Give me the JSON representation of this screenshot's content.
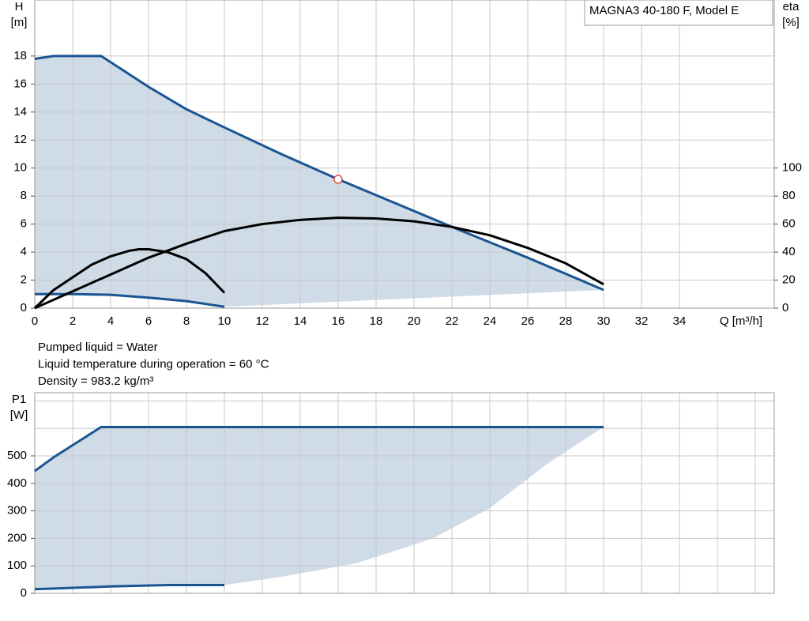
{
  "chart_data": [
    {
      "type": "pump-curve",
      "legend_text": "MAGNA3 40-180 F, Model E",
      "ylabel": [
        "H",
        "[m]"
      ],
      "y2label": [
        "eta",
        "[%]"
      ],
      "xlabel": "Q [m³/h]",
      "xlim": [
        0,
        39
      ],
      "xticks": [
        0,
        2,
        4,
        6,
        8,
        10,
        12,
        14,
        16,
        18,
        20,
        22,
        24,
        26,
        28,
        30,
        32,
        34
      ],
      "ylim": [
        0,
        22
      ],
      "yticks": [
        0,
        2,
        4,
        6,
        8,
        10,
        12,
        14,
        16,
        18
      ],
      "y2lim": [
        0,
        220
      ],
      "y2ticks": [
        0,
        20,
        40,
        60,
        80,
        100
      ],
      "grid": true,
      "fill": "#cfdbe6",
      "show_xtick_labels": true,
      "series": [
        {
          "color": "#1a5592",
          "x": [
            0,
            1,
            3.5,
            6,
            8,
            10,
            13,
            16,
            19,
            22,
            26,
            30
          ],
          "values": [
            17.8,
            18,
            18,
            15.8,
            14.2,
            12.9,
            11,
            9.2,
            7.5,
            5.8,
            3.6,
            1.3
          ]
        },
        {
          "color": "#1a5592",
          "x": [
            10,
            8,
            6,
            4,
            2,
            0
          ],
          "values": [
            0.1,
            0.5,
            0.75,
            0.95,
            1,
            1
          ]
        },
        {
          "color": "#000000",
          "axis": "y2",
          "x": [
            0,
            2,
            4,
            6,
            8,
            10,
            12,
            14,
            16,
            18,
            20,
            22,
            24,
            26,
            28,
            30
          ],
          "values": [
            0,
            12,
            24,
            36,
            46,
            55,
            60,
            63,
            64.5,
            64,
            62,
            58,
            52,
            43,
            32,
            17
          ]
        },
        {
          "color": "#000000",
          "axis": "y2",
          "x": [
            0,
            1,
            2,
            3,
            4,
            5,
            5.5,
            6,
            7,
            8,
            9,
            10
          ],
          "values": [
            0,
            13,
            22,
            31,
            37,
            41,
            42,
            42,
            40,
            35,
            25,
            11
          ]
        }
      ],
      "operating_point": {
        "x": 16,
        "y": 9.2
      },
      "annotations": [
        "Pumped liquid = Water",
        "Liquid temperature during operation = 60 °C",
        "Density = 983.2 kg/m³"
      ]
    },
    {
      "type": "pump-curve",
      "ylabel": [
        "P1",
        "[W]"
      ],
      "xlim": [
        0,
        39
      ],
      "xticks": [
        0,
        2,
        4,
        6,
        8,
        10,
        12,
        14,
        16,
        18,
        20,
        22,
        24,
        26,
        28,
        30,
        32,
        34,
        36,
        38
      ],
      "ylim": [
        0,
        730
      ],
      "yticks": [
        0,
        100,
        200,
        300,
        400,
        500
      ],
      "grid_y": [
        0,
        100,
        200,
        300,
        400,
        500,
        600,
        700
      ],
      "grid": true,
      "fill": "#cfdbe6",
      "show_xtick_labels": false,
      "series": [
        {
          "color": "#1a5592",
          "x": [
            0,
            1,
            3.5,
            30
          ],
          "values": [
            445,
            495,
            605,
            605
          ]
        },
        {
          "x": [
            30,
            27,
            24,
            21,
            17,
            13,
            10
          ],
          "values": [
            605,
            470,
            310,
            200,
            110,
            60,
            30
          ]
        },
        {
          "color": "#1a5592",
          "x": [
            10,
            7,
            4,
            0
          ],
          "values": [
            30,
            30,
            25,
            15
          ]
        }
      ]
    }
  ]
}
